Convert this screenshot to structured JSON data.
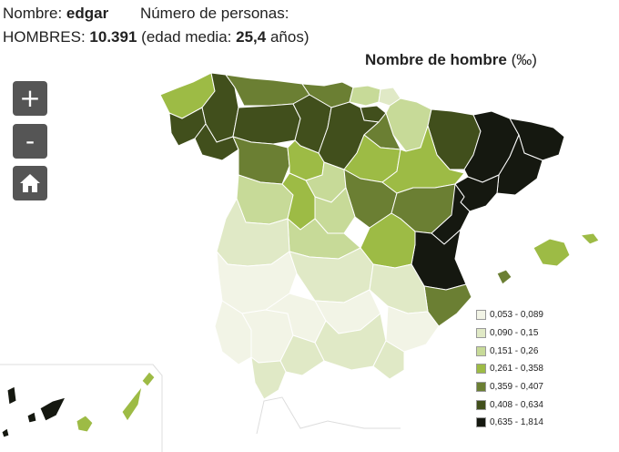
{
  "header": {
    "name_label": "Nombre:",
    "name_value": "edgar",
    "persons_label": "Número de personas:",
    "men_label": "HOMBRES:",
    "men_value": "10.391",
    "age_prefix": "(edad media:",
    "age_value": "25,4",
    "age_suffix": "años)"
  },
  "map": {
    "title": "Nombre de hombre",
    "unit": "(‰)"
  },
  "controls": {
    "zoom_in": "+",
    "zoom_out": "-",
    "home_icon": "home-icon"
  },
  "legend": [
    {
      "label": "0,053 - 0,089",
      "color": "#f2f4e6"
    },
    {
      "label": "0,090 - 0,15",
      "color": "#e0e9c6"
    },
    {
      "label": "0,151 - 0,26",
      "color": "#c7da98"
    },
    {
      "label": "0,261 - 0,358",
      "color": "#9dbb45"
    },
    {
      "label": "0,359 - 0,407",
      "color": "#6b7f33"
    },
    {
      "label": "0,408 - 0,634",
      "color": "#414f1c"
    },
    {
      "label": "0,635 - 1,814",
      "color": "#151810"
    }
  ]
}
